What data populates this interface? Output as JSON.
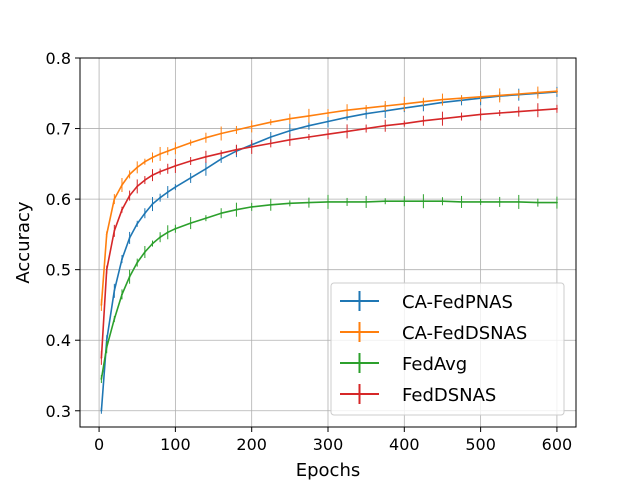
{
  "chart_data": {
    "type": "line",
    "title": "",
    "xlabel": "Epochs",
    "ylabel": "Accuracy",
    "xlim": [
      -25,
      625
    ],
    "ylim": [
      0.277,
      0.8
    ],
    "xticks": [
      0,
      100,
      200,
      300,
      400,
      500,
      600
    ],
    "xtick_labels": [
      "0",
      "100",
      "200",
      "300",
      "400",
      "500",
      "600"
    ],
    "yticks": [
      0.3,
      0.4,
      0.5,
      0.6,
      0.7,
      0.8
    ],
    "ytick_labels": [
      "0.3",
      "0.4",
      "0.5",
      "0.6",
      "0.7",
      "0.8"
    ],
    "grid": true,
    "error_bars": true,
    "legend_position": "lower-right",
    "x": [
      3,
      10,
      20,
      30,
      40,
      50,
      60,
      70,
      80,
      90,
      100,
      120,
      140,
      160,
      180,
      200,
      225,
      250,
      275,
      300,
      325,
      350,
      375,
      400,
      425,
      450,
      475,
      500,
      525,
      550,
      575,
      600
    ],
    "series": [
      {
        "name": "CA-FedPNAS",
        "color": "#1f77b4",
        "values": [
          0.3,
          0.4,
          0.47,
          0.515,
          0.545,
          0.565,
          0.58,
          0.593,
          0.602,
          0.61,
          0.617,
          0.63,
          0.643,
          0.657,
          0.668,
          0.677,
          0.688,
          0.697,
          0.704,
          0.71,
          0.716,
          0.721,
          0.725,
          0.729,
          0.733,
          0.737,
          0.74,
          0.743,
          0.746,
          0.748,
          0.75,
          0.752
        ]
      },
      {
        "name": "CA-FedDSNAS",
        "color": "#ff7f0e",
        "values": [
          0.45,
          0.55,
          0.6,
          0.62,
          0.635,
          0.645,
          0.653,
          0.659,
          0.664,
          0.668,
          0.672,
          0.68,
          0.687,
          0.693,
          0.698,
          0.703,
          0.709,
          0.714,
          0.718,
          0.722,
          0.726,
          0.729,
          0.732,
          0.735,
          0.738,
          0.741,
          0.743,
          0.745,
          0.747,
          0.749,
          0.751,
          0.753
        ]
      },
      {
        "name": "FedAvg",
        "color": "#2ca02c",
        "values": [
          0.345,
          0.39,
          0.43,
          0.465,
          0.49,
          0.51,
          0.525,
          0.537,
          0.546,
          0.553,
          0.558,
          0.566,
          0.573,
          0.58,
          0.585,
          0.589,
          0.592,
          0.594,
          0.595,
          0.596,
          0.596,
          0.596,
          0.597,
          0.597,
          0.597,
          0.597,
          0.596,
          0.596,
          0.596,
          0.596,
          0.595,
          0.595
        ]
      },
      {
        "name": "FedDSNAS",
        "color": "#d62728",
        "values": [
          0.375,
          0.5,
          0.555,
          0.585,
          0.605,
          0.618,
          0.627,
          0.634,
          0.639,
          0.643,
          0.647,
          0.654,
          0.66,
          0.665,
          0.67,
          0.674,
          0.679,
          0.684,
          0.688,
          0.692,
          0.696,
          0.7,
          0.704,
          0.707,
          0.711,
          0.714,
          0.717,
          0.72,
          0.722,
          0.724,
          0.726,
          0.728
        ]
      }
    ]
  }
}
